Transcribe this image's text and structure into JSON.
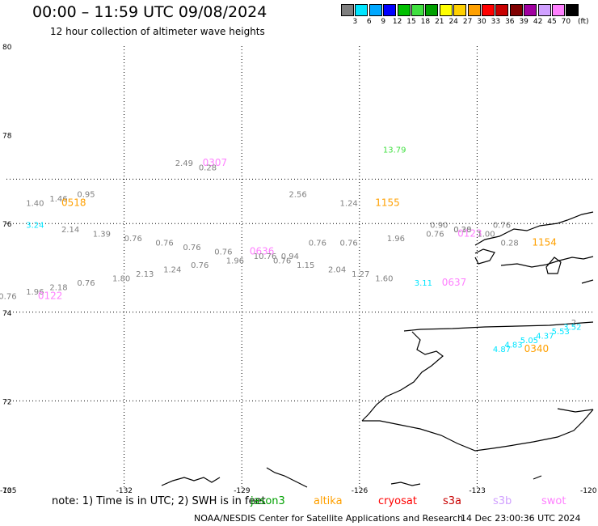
{
  "header": {
    "title": "00:00 – 11:59 UTC 09/08/2024",
    "subtitle": "12 hour collection of altimeter wave heights"
  },
  "colorbar": {
    "colors": [
      "#7f7f7f",
      "#00e5ff",
      "#00a8ff",
      "#0000ff",
      "#00c000",
      "#40e040",
      "#00a000",
      "#ffff00",
      "#ffd000",
      "#ffa000",
      "#ff0000",
      "#c80000",
      "#800000",
      "#a000a0",
      "#d0a0ff",
      "#ff80ff",
      "#000000"
    ],
    "labels": [
      "3",
      "6",
      "9",
      "12",
      "15",
      "18",
      "21",
      "24",
      "27",
      "30",
      "33",
      "36",
      "39",
      "42",
      "45",
      "70"
    ],
    "unit": "(ft)"
  },
  "axes": {
    "lat_labels": [
      "80",
      "78",
      "76",
      "74",
      "72",
      "70"
    ],
    "lon_labels": [
      "-135",
      "-132",
      "-129",
      "-126",
      "-123",
      "-120"
    ]
  },
  "wave_labels": [
    {
      "text": "13.79",
      "color": "#40e040",
      "lon": -125.4,
      "lat": 77.6
    },
    {
      "text": "2.49",
      "color": "#808080",
      "lon": -130.7,
      "lat": 77.3
    },
    {
      "text": "0307",
      "color": "#ff80ff",
      "lon": -130.0,
      "lat": 77.3
    },
    {
      "text": "0.28",
      "color": "#808080",
      "lon": -130.1,
      "lat": 77.2
    },
    {
      "text": "0.95",
      "color": "#808080",
      "lon": -133.2,
      "lat": 76.6
    },
    {
      "text": "2.56",
      "color": "#808080",
      "lon": -127.8,
      "lat": 76.6
    },
    {
      "text": "1.46",
      "color": "#808080",
      "lon": -133.9,
      "lat": 76.5
    },
    {
      "text": "1.40",
      "color": "#808080",
      "lon": -134.5,
      "lat": 76.4
    },
    {
      "text": "0518",
      "color": "#ffa000",
      "lon": -133.6,
      "lat": 76.4
    },
    {
      "text": "1.24",
      "color": "#808080",
      "lon": -126.5,
      "lat": 76.4
    },
    {
      "text": "1155",
      "color": "#ffa000",
      "lon": -125.6,
      "lat": 76.4
    },
    {
      "text": "3.24",
      "color": "#00e5ff",
      "lon": -134.5,
      "lat": 75.9
    },
    {
      "text": "0.90",
      "color": "#808080",
      "lon": -124.2,
      "lat": 75.9
    },
    {
      "text": "0.76",
      "color": "#808080",
      "lon": -122.6,
      "lat": 75.9
    },
    {
      "text": "2.14",
      "color": "#808080",
      "lon": -133.6,
      "lat": 75.8
    },
    {
      "text": "0.28",
      "color": "#808080",
      "lon": -123.6,
      "lat": 75.8
    },
    {
      "text": "0.30",
      "color": "#808080",
      "lon": -123.6,
      "lat": 75.8
    },
    {
      "text": "1.39",
      "color": "#808080",
      "lon": -132.8,
      "lat": 75.7
    },
    {
      "text": "0.76",
      "color": "#808080",
      "lon": -124.3,
      "lat": 75.7
    },
    {
      "text": "0123",
      "color": "#ff80ff",
      "lon": -123.5,
      "lat": 75.7
    },
    {
      "text": "1.00",
      "color": "#808080",
      "lon": -123.0,
      "lat": 75.7
    },
    {
      "text": "0.76",
      "color": "#808080",
      "lon": -132.0,
      "lat": 75.6
    },
    {
      "text": "1.96",
      "color": "#808080",
      "lon": -125.3,
      "lat": 75.6
    },
    {
      "text": "0.76",
      "color": "#808080",
      "lon": -131.2,
      "lat": 75.5
    },
    {
      "text": "0.76",
      "color": "#808080",
      "lon": -126.5,
      "lat": 75.5
    },
    {
      "text": "0.76",
      "color": "#808080",
      "lon": -127.3,
      "lat": 75.5
    },
    {
      "text": "0.28",
      "color": "#808080",
      "lon": -122.4,
      "lat": 75.5
    },
    {
      "text": "1154",
      "color": "#ffa000",
      "lon": -121.6,
      "lat": 75.5
    },
    {
      "text": "0.76",
      "color": "#808080",
      "lon": -130.5,
      "lat": 75.4
    },
    {
      "text": "0.76",
      "color": "#808080",
      "lon": -129.7,
      "lat": 75.3
    },
    {
      "text": "0636",
      "color": "#ff80ff",
      "lon": -128.8,
      "lat": 75.3
    },
    {
      "text": "0.94",
      "color": "#808080",
      "lon": -128.0,
      "lat": 75.2
    },
    {
      "text": "10.76",
      "color": "#808080",
      "lon": -128.7,
      "lat": 75.2
    },
    {
      "text": "1.96",
      "color": "#808080",
      "lon": -129.4,
      "lat": 75.1
    },
    {
      "text": "0.76",
      "color": "#808080",
      "lon": -128.2,
      "lat": 75.1
    },
    {
      "text": "0.76",
      "color": "#808080",
      "lon": -130.3,
      "lat": 75.0
    },
    {
      "text": "1.15",
      "color": "#808080",
      "lon": -127.6,
      "lat": 75.0
    },
    {
      "text": "2.04",
      "color": "#808080",
      "lon": -126.8,
      "lat": 74.9
    },
    {
      "text": "1.24",
      "color": "#808080",
      "lon": -131.0,
      "lat": 74.9
    },
    {
      "text": "1.27",
      "color": "#808080",
      "lon": -126.2,
      "lat": 74.8
    },
    {
      "text": "2.13",
      "color": "#808080",
      "lon": -131.7,
      "lat": 74.8
    },
    {
      "text": "1.60",
      "color": "#808080",
      "lon": -125.6,
      "lat": 74.7
    },
    {
      "text": "1.80",
      "color": "#808080",
      "lon": -132.3,
      "lat": 74.7
    },
    {
      "text": "3.11",
      "color": "#00e5ff",
      "lon": -124.6,
      "lat": 74.6
    },
    {
      "text": "0637",
      "color": "#ff80ff",
      "lon": -123.9,
      "lat": 74.6
    },
    {
      "text": "0.76",
      "color": "#808080",
      "lon": -133.2,
      "lat": 74.6
    },
    {
      "text": "2.18",
      "color": "#808080",
      "lon": -133.9,
      "lat": 74.5
    },
    {
      "text": "1.96",
      "color": "#808080",
      "lon": -134.5,
      "lat": 74.4
    },
    {
      "text": "0.76",
      "color": "#808080",
      "lon": -135.2,
      "lat": 74.3
    },
    {
      "text": "0122",
      "color": "#ff80ff",
      "lon": -134.2,
      "lat": 74.3
    },
    {
      "text": "2.",
      "color": "#808080",
      "lon": -120.6,
      "lat": 73.7
    },
    {
      "text": "3.52",
      "color": "#00e5ff",
      "lon": -120.8,
      "lat": 73.6
    },
    {
      "text": "5.53",
      "color": "#00e5ff",
      "lon": -121.1,
      "lat": 73.5
    },
    {
      "text": "4.37",
      "color": "#00e5ff",
      "lon": -121.5,
      "lat": 73.4
    },
    {
      "text": "5.05",
      "color": "#00e5ff",
      "lon": -121.9,
      "lat": 73.3
    },
    {
      "text": "4.83",
      "color": "#00e5ff",
      "lon": -122.3,
      "lat": 73.2
    },
    {
      "text": "4.87",
      "color": "#00e5ff",
      "lon": -122.6,
      "lat": 73.1
    },
    {
      "text": "0340",
      "color": "#ffa000",
      "lon": -121.8,
      "lat": 73.1
    }
  ],
  "footer": {
    "note": "note:  1) Time is in UTC;  2) SWH is in feet",
    "satellites": [
      {
        "name": "jason3",
        "color": "#00a000"
      },
      {
        "name": "altika",
        "color": "#ffa000"
      },
      {
        "name": "cryosat",
        "color": "#ff0000"
      },
      {
        "name": "s3a",
        "color": "#c80000"
      },
      {
        "name": "s3b",
        "color": "#d0a0ff"
      },
      {
        "name": "swot",
        "color": "#ff80ff"
      }
    ],
    "credit": "NOAA/NESDIS Center for Satellite Applications and Research",
    "timestamp": "14 Dec 23:00:36 UTC 2024"
  }
}
